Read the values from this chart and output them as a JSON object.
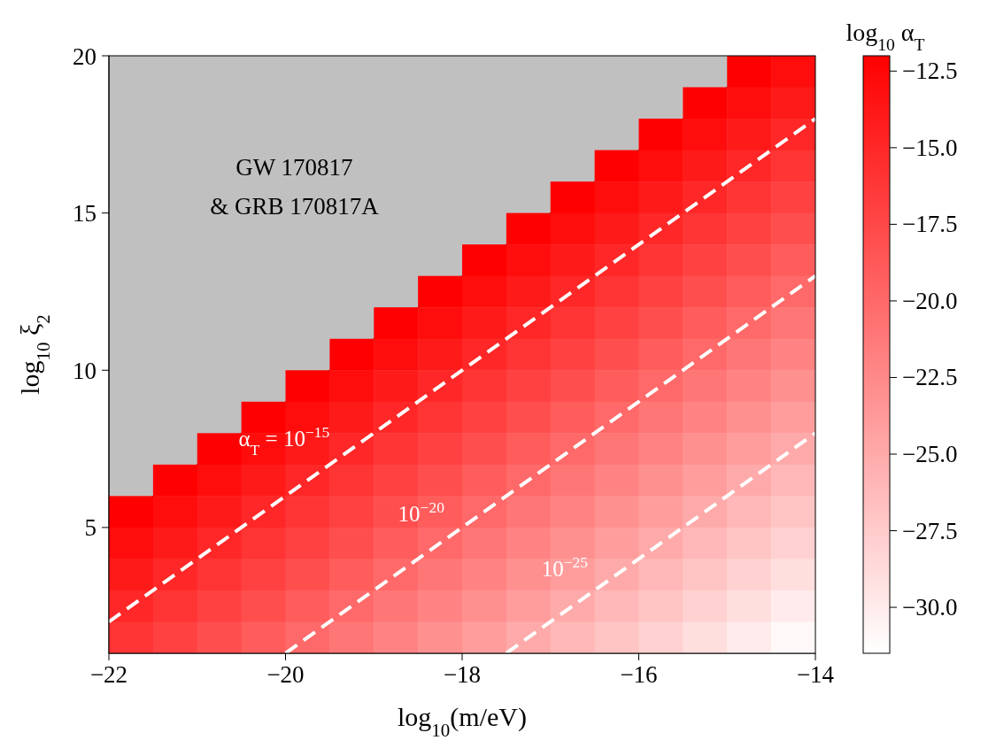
{
  "chart_data": {
    "type": "heatmap",
    "xlabel": "log$_{10}$(m/eV)",
    "ylabel": "log$_{10}$ ξ$_{2}$",
    "clabel": "log$_{10}$ α$_{T}$",
    "xlim": [
      -22,
      -14
    ],
    "xticks": [
      -22,
      -20,
      -18,
      -16,
      -14
    ],
    "ylim": [
      1,
      20
    ],
    "yticks": [
      5,
      10,
      15,
      20
    ],
    "color": "#ff0000",
    "clim": [
      -31.5,
      -12
    ],
    "cticks": [
      {
        "value": -30,
        "label": "−30.0"
      },
      {
        "value": -27.5,
        "label": "−27.5"
      },
      {
        "value": -25,
        "label": "−25.0"
      },
      {
        "value": -22.5,
        "label": "−22.5"
      },
      {
        "value": -20,
        "label": "−20.0"
      },
      {
        "value": -17.5,
        "label": "−17.5"
      },
      {
        "value": -15,
        "label": "−15.0"
      },
      {
        "value": -12.5,
        "label": "−12.5"
      }
    ],
    "cells": [
      [
        null,
        null,
        null,
        null,
        null,
        null,
        null,
        null,
        null,
        null,
        null,
        null,
        null,
        null,
        -12,
        -13
      ],
      [
        null,
        null,
        null,
        null,
        null,
        null,
        null,
        null,
        null,
        null,
        null,
        null,
        null,
        -12,
        -13,
        -14
      ],
      [
        null,
        null,
        null,
        null,
        null,
        null,
        null,
        null,
        null,
        null,
        null,
        null,
        -12,
        -13,
        -14,
        -15
      ],
      [
        null,
        null,
        null,
        null,
        null,
        null,
        null,
        null,
        null,
        null,
        null,
        -12,
        -13,
        -14,
        -15,
        -16
      ],
      [
        null,
        null,
        null,
        null,
        null,
        null,
        null,
        null,
        null,
        null,
        -12,
        -13,
        -14,
        -15,
        -16,
        -17
      ],
      [
        null,
        null,
        null,
        null,
        null,
        null,
        null,
        null,
        null,
        -12,
        -13,
        -14,
        -15,
        -16,
        -17,
        -18
      ],
      [
        null,
        null,
        null,
        null,
        null,
        null,
        null,
        null,
        -12,
        -13,
        -14,
        -15,
        -16,
        -17,
        -18,
        -19
      ],
      [
        null,
        null,
        null,
        null,
        null,
        null,
        null,
        -12,
        -13,
        -14,
        -15,
        -16,
        -17,
        -18,
        -19,
        -20
      ],
      [
        null,
        null,
        null,
        null,
        null,
        null,
        -12,
        -13,
        -14,
        -15,
        -16,
        -17,
        -18,
        -19,
        -20,
        -21
      ],
      [
        null,
        null,
        null,
        null,
        null,
        -12,
        -13,
        -14,
        -15,
        -16,
        -17,
        -18,
        -19,
        -20,
        -21,
        -22
      ],
      [
        null,
        null,
        null,
        null,
        -12,
        -13,
        -14,
        -15,
        -16,
        -17,
        -18,
        -19,
        -20,
        -21,
        -22,
        -23
      ],
      [
        null,
        null,
        null,
        -12,
        -13,
        -14,
        -15,
        -16,
        -17,
        -18,
        -19,
        -20,
        -21,
        -22,
        -23,
        -24
      ],
      [
        null,
        null,
        -12,
        -13,
        -14,
        -15,
        -16,
        -17,
        -18,
        -19,
        -20,
        -21,
        -22,
        -23,
        -24,
        -25
      ],
      [
        null,
        -12,
        -13,
        -14,
        -15,
        -16,
        -17,
        -18,
        -19,
        -20,
        -21,
        -22,
        -23,
        -24,
        -25,
        -26
      ],
      [
        -12,
        -13,
        -14,
        -15,
        -16,
        -17,
        -18,
        -19,
        -20,
        -21,
        -22,
        -23,
        -24,
        -25,
        -26,
        -27
      ],
      [
        -13,
        -14,
        -15,
        -16,
        -17,
        -18,
        -19,
        -20,
        -21,
        -22,
        -23,
        -24,
        -25,
        -26,
        -27,
        -28
      ],
      [
        -14,
        -15,
        -16,
        -17,
        -18,
        -19,
        -20,
        -21,
        -22,
        -23,
        -24,
        -25,
        -26,
        -27,
        -28,
        -29
      ],
      [
        -15,
        -16,
        -17,
        -18,
        -19,
        -20,
        -21,
        -22,
        -23,
        -24,
        -25,
        -26,
        -27,
        -28,
        -29,
        -30
      ],
      [
        -16,
        -17,
        -18,
        -19,
        -20,
        -21,
        -22,
        -23,
        -24,
        -25,
        -26,
        -27,
        -28,
        -29,
        -30,
        -31
      ]
    ],
    "series": [
      {
        "type": "area",
        "color": "#c0c0c0",
        "x": [
          -22,
          -14.5
        ],
        "values": [
          5,
          20
        ]
      },
      {
        "type": "line",
        "name": "α$_{T}$ = 10$^{−15}$",
        "color": "#ffffff",
        "x": [
          -22,
          -14
        ],
        "values": [
          2,
          18
        ]
      },
      {
        "type": "line",
        "name": "10$^{−20}$",
        "color": "#ffffff",
        "x": [
          -20,
          -14
        ],
        "values": [
          1,
          13
        ]
      },
      {
        "type": "line",
        "name": "10$^{−25}$",
        "color": "#ffffff",
        "x": [
          -17.5,
          -14
        ],
        "values": [
          1,
          8
        ]
      }
    ],
    "line_style": "dashed",
    "grid": false,
    "annotations": [
      "GW 170817\n& GRB 170817A"
    ]
  }
}
